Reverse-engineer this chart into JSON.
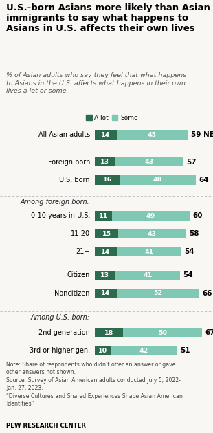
{
  "title": "U.S.-born Asians more likely than Asian\nimmigrants to say what happens to\nAsians in U.S. affects their own lives",
  "subtitle": "% of Asian adults who say they feel that what happens\nto Asians in the U.S. affects what happens in their own\nlives a lot or some",
  "color_alot": "#2d6b4f",
  "color_some": "#7ec8b4",
  "categories": [
    "All Asian adults",
    "Foreign born",
    "U.S. born",
    "0-10 years in U.S.",
    "11-20",
    "21+",
    "Citizen",
    "Noncitizen",
    "2nd generation",
    "3rd or higher gen."
  ],
  "alot": [
    14,
    13,
    16,
    11,
    15,
    14,
    13,
    14,
    18,
    10
  ],
  "some": [
    45,
    43,
    48,
    49,
    43,
    41,
    41,
    52,
    50,
    42
  ],
  "net": [
    59,
    57,
    64,
    60,
    58,
    54,
    54,
    66,
    67,
    51
  ],
  "net_suffix": [
    "NET",
    "",
    "",
    "",
    "",
    "",
    "",
    "",
    "",
    ""
  ],
  "bg_color": "#f9f7f4",
  "note_line1": "Note: Share of respondents who didn’t offer an answer or gave",
  "note_line2": "other answers not shown.",
  "note_line3": "Source: Survey of Asian American adults conducted July 5, 2022-",
  "note_line4": "Jan. 27, 2023.",
  "note_line5": "“Diverse Cultures and Shared Experiences Shape Asian American",
  "note_line6": "Identities”",
  "source_bold": "PEW RESEARCH CENTER"
}
